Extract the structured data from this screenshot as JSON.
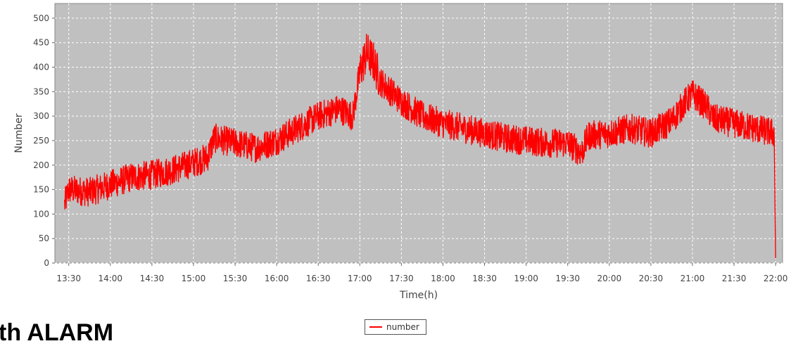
{
  "colors": {
    "plot_background": "#c0c0c0",
    "series": "#ff0000",
    "grid": "#ffffff"
  },
  "heading_fragment": "th ALARM",
  "chart_data": {
    "type": "line",
    "title": "",
    "xlabel": "Time(h)",
    "ylabel": "Number",
    "ylim": [
      0,
      530
    ],
    "yticks": [
      0,
      50,
      100,
      150,
      200,
      250,
      300,
      350,
      400,
      450,
      500
    ],
    "xlim": [
      "13:20",
      "22:05"
    ],
    "xticks": [
      "13:30",
      "14:00",
      "14:30",
      "15:00",
      "15:30",
      "16:00",
      "16:30",
      "17:00",
      "17:30",
      "18:00",
      "18:30",
      "19:00",
      "19:30",
      "20:00",
      "20:30",
      "21:00",
      "21:30",
      "22:00"
    ],
    "grid": true,
    "legend_position": "bottom-center",
    "series": [
      {
        "name": "number",
        "x": [
          "13:27",
          "13:30",
          "13:45",
          "14:00",
          "14:15",
          "14:30",
          "14:45",
          "15:00",
          "15:10",
          "15:15",
          "15:30",
          "15:45",
          "16:00",
          "16:15",
          "16:30",
          "16:45",
          "16:55",
          "17:00",
          "17:05",
          "17:10",
          "17:15",
          "17:30",
          "17:45",
          "18:00",
          "18:15",
          "18:30",
          "18:45",
          "19:00",
          "19:15",
          "19:30",
          "19:40",
          "19:45",
          "20:00",
          "20:15",
          "20:30",
          "20:45",
          "20:55",
          "21:00",
          "21:10",
          "21:15",
          "21:30",
          "21:45",
          "21:59",
          "22:00"
        ],
        "values": [
          120,
          150,
          145,
          160,
          175,
          180,
          190,
          205,
          215,
          255,
          245,
          235,
          250,
          275,
          300,
          315,
          300,
          390,
          430,
          410,
          370,
          330,
          300,
          285,
          275,
          265,
          255,
          250,
          245,
          245,
          225,
          260,
          265,
          275,
          265,
          290,
          330,
          345,
          320,
          295,
          285,
          275,
          265,
          10
        ],
        "fluctuation": 30
      }
    ]
  }
}
